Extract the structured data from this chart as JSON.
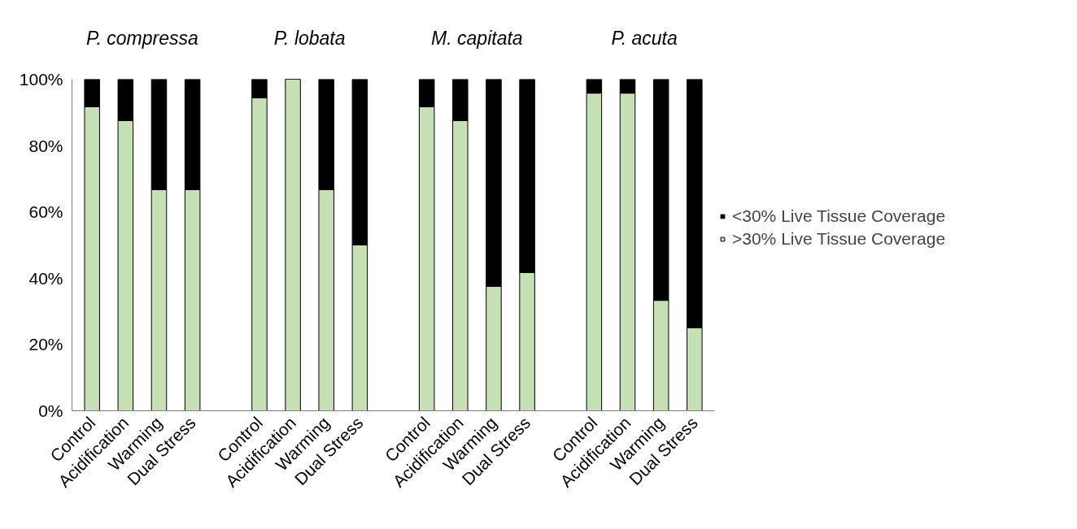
{
  "chart_data": {
    "type": "bar",
    "stacked": true,
    "categories": [
      "Control",
      "Acidification",
      "Warming",
      "Dual Stress",
      null,
      "Control",
      "Acidification",
      "Warming",
      "Dual Stress",
      null,
      "Control",
      "Acidification",
      "Warming",
      "Dual Stress",
      null,
      "Control",
      "Acidification",
      "Warming",
      "Dual Stress"
    ],
    "series": [
      {
        "name": ">30% Live Tissue Coverage",
        "color": "#c5e0b4",
        "values": [
          91.7,
          87.5,
          66.7,
          66.7,
          null,
          94.4,
          100,
          66.7,
          50,
          null,
          91.7,
          87.5,
          37.5,
          41.7,
          null,
          95.8,
          95.8,
          33.3,
          25
        ]
      },
      {
        "name": "<30% Live Tissue Coverage",
        "color": "#000000",
        "values": [
          8.3,
          12.5,
          33.3,
          33.3,
          null,
          5.6,
          0,
          33.3,
          50,
          null,
          8.3,
          12.5,
          62.5,
          58.3,
          null,
          4.2,
          4.2,
          66.7,
          75
        ]
      }
    ],
    "ylim": [
      0,
      100
    ],
    "yticks": [
      {
        "value": 0,
        "label": "0%"
      },
      {
        "value": 20,
        "label": "20%"
      },
      {
        "value": 40,
        "label": "40%"
      },
      {
        "value": 60,
        "label": "60%"
      },
      {
        "value": 80,
        "label": "80%"
      },
      {
        "value": 100,
        "label": "100%"
      }
    ],
    "annotations": [
      "P. compressa",
      "P. lobata",
      "M. capitata",
      "P. acuta"
    ],
    "legend": "right",
    "grid": false
  }
}
